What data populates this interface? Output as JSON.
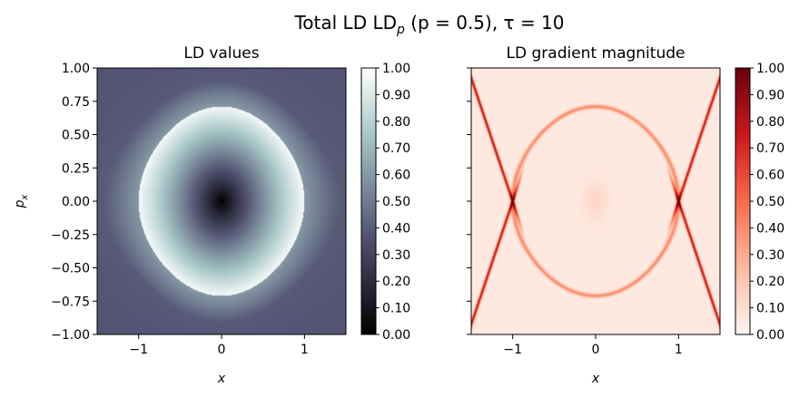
{
  "suptitle": {
    "prefix": "Total LD LD",
    "sub": "p",
    "suffix": " (p = 0.5), τ = 10"
  },
  "chart_data": [
    {
      "type": "heatmap",
      "title": "LD values",
      "xlabel": "x",
      "ylabel": "p",
      "ylabel_sub": "x",
      "xlim": [
        -1.5,
        1.5
      ],
      "ylim": [
        -1.0,
        1.0
      ],
      "x_ticks": [
        -1,
        0,
        1
      ],
      "x_tick_labels": [
        "−1",
        "0",
        "1"
      ],
      "y_ticks": [
        1.0,
        0.75,
        0.5,
        0.25,
        0.0,
        -0.25,
        -0.5,
        -0.75,
        -1.0
      ],
      "y_tick_labels": [
        "1.00",
        "0.75",
        "0.50",
        "0.25",
        "0.00",
        "−0.25",
        "−0.50",
        "−0.75",
        "−1.00"
      ],
      "colormap": "bone",
      "colorbar": {
        "range": [
          0.0,
          1.0
        ],
        "ticks": [
          1.0,
          0.9,
          0.8,
          0.7,
          0.6,
          0.5,
          0.4,
          0.3,
          0.2,
          0.1,
          0.0
        ],
        "tick_labels": [
          "1.00",
          "0.90",
          "0.80",
          "0.70",
          "0.60",
          "0.50",
          "0.40",
          "0.30",
          "0.20",
          "0.10",
          "0.00"
        ]
      },
      "structure": {
        "saddle_points": [
          [
            -1,
            0
          ],
          [
            1,
            0
          ]
        ],
        "center": [
          0,
          0
        ],
        "separatrix_max_p": 0.71,
        "value_at_center": 0.0,
        "value_inside_near_separatrix": 0.97,
        "value_outside_near_separatrix": 0.6
      }
    },
    {
      "type": "heatmap",
      "title": "LD gradient magnitude",
      "xlabel": "x",
      "xlim": [
        -1.5,
        1.5
      ],
      "ylim": [
        -1.0,
        1.0
      ],
      "x_ticks": [
        -1,
        0,
        1
      ],
      "x_tick_labels": [
        "−1",
        "0",
        "1"
      ],
      "y_ticks": [
        1.0,
        0.75,
        0.5,
        0.25,
        0.0,
        -0.25,
        -0.5,
        -0.75,
        -1.0
      ],
      "colormap": "reds",
      "colorbar": {
        "range": [
          0.0,
          1.0
        ],
        "ticks": [
          1.0,
          0.9,
          0.8,
          0.7,
          0.6,
          0.5,
          0.4,
          0.3,
          0.2,
          0.1,
          0.0
        ],
        "tick_labels": [
          "1.00",
          "0.90",
          "0.80",
          "0.70",
          "0.60",
          "0.50",
          "0.40",
          "0.30",
          "0.20",
          "0.10",
          "0.00"
        ]
      },
      "structure": {
        "saddle_points": [
          [
            -1,
            0
          ],
          [
            1,
            0
          ]
        ],
        "ridge_max_on_outer_manifolds": 0.75,
        "ridge_on_separatrix": 0.35,
        "background": 0.05
      }
    }
  ]
}
